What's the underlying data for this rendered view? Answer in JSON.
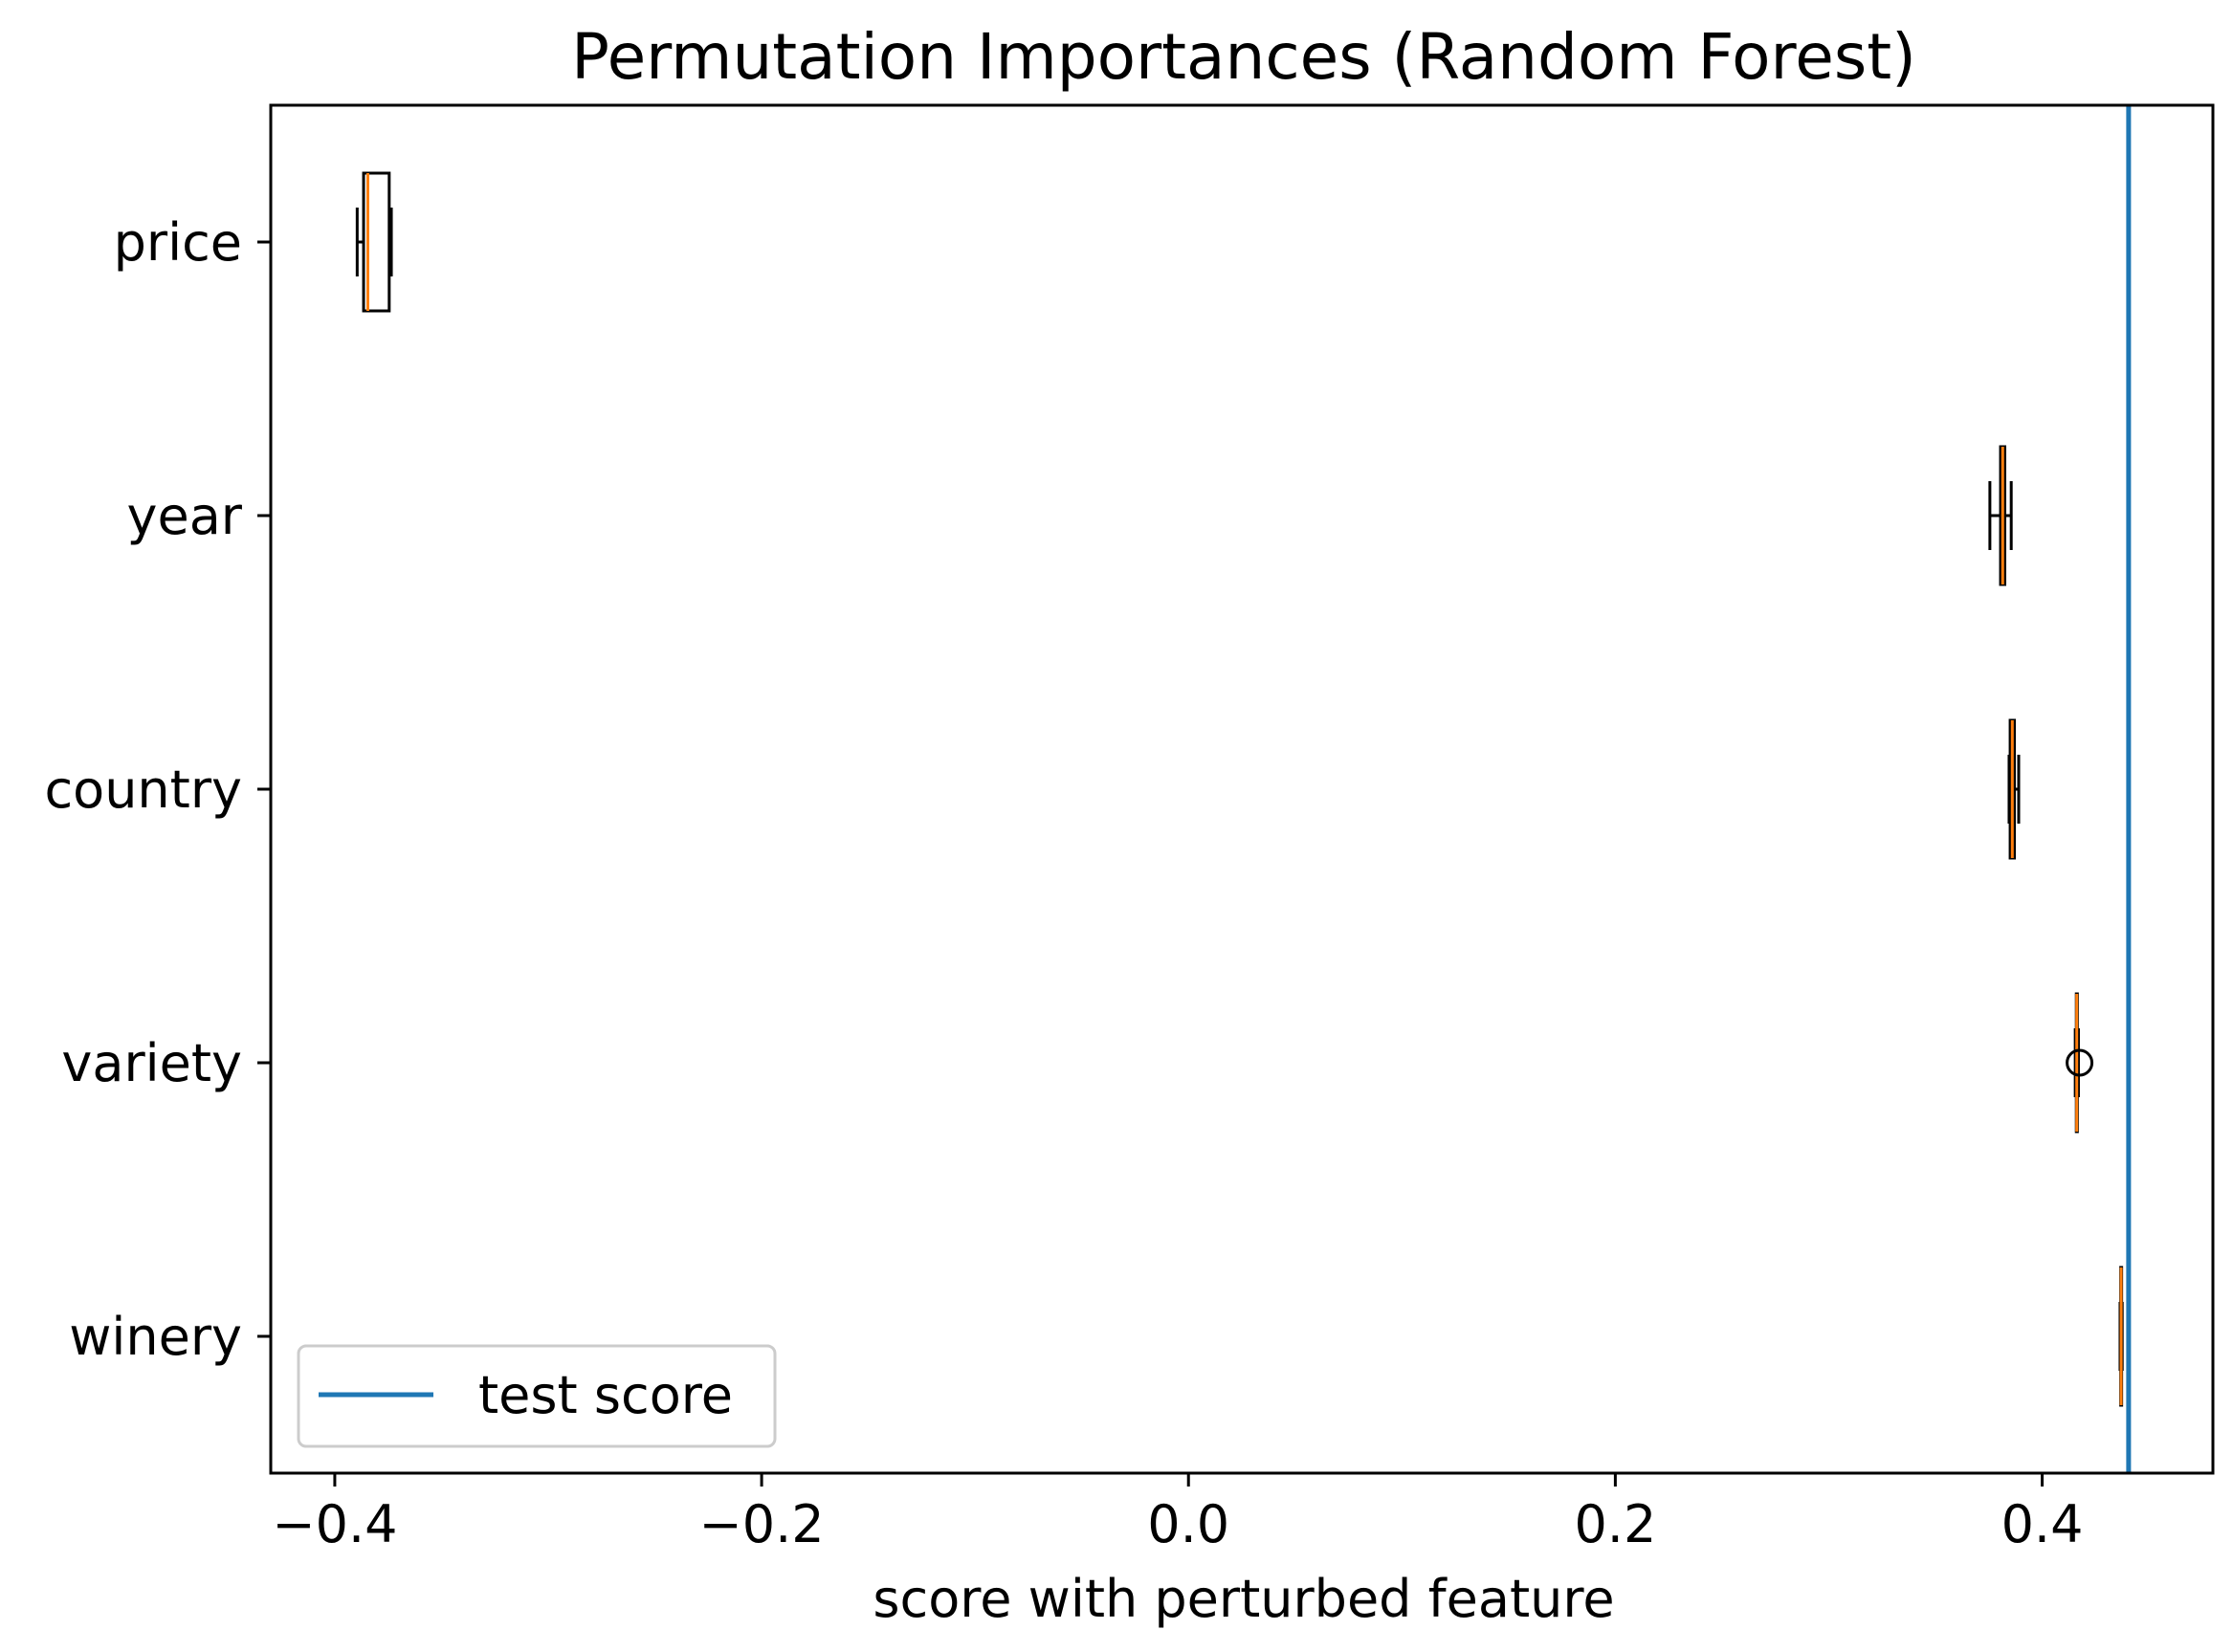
{
  "chart_data": {
    "type": "boxplot",
    "orientation": "horizontal",
    "title": "Permutation Importances (Random Forest)",
    "xlabel": "score with perturbed feature",
    "ylabel": "",
    "xlim": [
      -0.43,
      0.48
    ],
    "xticks": [
      -0.4,
      -0.2,
      0.0,
      0.2,
      0.4
    ],
    "xtick_labels": [
      "−0.4",
      "−0.2",
      "0.0",
      "0.2",
      "0.4"
    ],
    "categories": [
      "price",
      "year",
      "country",
      "variety",
      "winery"
    ],
    "boxes": [
      {
        "label": "price",
        "whislo": -0.3895,
        "q1": -0.3865,
        "med": -0.3845,
        "q3": -0.3745,
        "whishi": -0.3735,
        "fliers": []
      },
      {
        "label": "year",
        "whislo": 0.3755,
        "q1": 0.3805,
        "med": 0.3815,
        "q3": 0.3825,
        "whishi": 0.3855,
        "fliers": []
      },
      {
        "label": "country",
        "whislo": 0.3845,
        "q1": 0.385,
        "med": 0.386,
        "q3": 0.387,
        "whishi": 0.389,
        "fliers": []
      },
      {
        "label": "variety",
        "whislo": 0.4155,
        "q1": 0.416,
        "med": 0.4162,
        "q3": 0.4165,
        "whishi": 0.417,
        "fliers": [
          0.4175
        ]
      },
      {
        "label": "winery",
        "whislo": 0.4365,
        "q1": 0.4368,
        "med": 0.437,
        "q3": 0.4372,
        "whishi": 0.4375,
        "fliers": []
      }
    ],
    "reference_line": {
      "label": "test score",
      "x": 0.4405,
      "color": "#1f77b4"
    },
    "legend": {
      "placement": "lower-left",
      "entries": [
        "test score"
      ]
    },
    "grid": false,
    "colors": {
      "box": "#000000",
      "median": "#ff7f0e",
      "line": "#1f77b4"
    }
  }
}
